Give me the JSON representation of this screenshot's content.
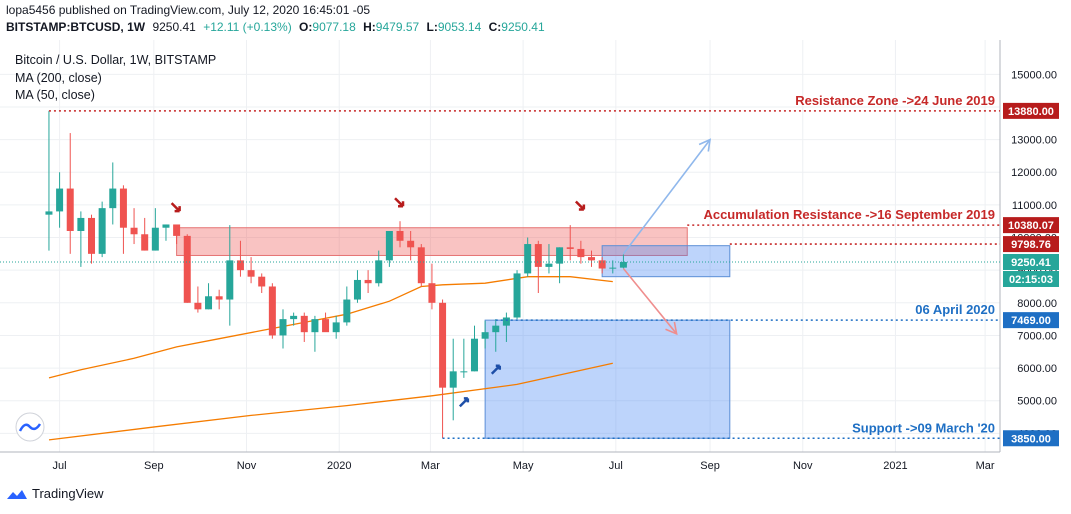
{
  "header": {
    "published": "lopa5456 published on TradingView.com, July 12, 2020 16:45:01 -05",
    "symbol": "BITSTAMP:BTCUSD, 1W",
    "last": "9250.41",
    "change": "+12.11 (+0.13%)",
    "o_label": "O:",
    "o": "9077.18",
    "h_label": "H:",
    "h": "9479.57",
    "l_label": "L:",
    "l": "9053.14",
    "c_label": "C:",
    "c": "9250.41"
  },
  "legend": {
    "title": "Bitcoin / U.S. Dollar, 1W, BITSTAMP",
    "ma200": "MA (200, close)",
    "ma50": "MA (50, close)"
  },
  "footer": {
    "brand": "TradingView"
  },
  "colors": {
    "up": "#26a69a",
    "down": "#ef5350",
    "ma": "#f57c00",
    "resistance": "#c62828",
    "support": "#1e6fc4",
    "zone_red": "rgba(239,83,80,0.35)",
    "zone_blue": "rgba(66,133,244,0.35)"
  },
  "chart_data": {
    "type": "candlestick",
    "ylim": [
      3000,
      15500
    ],
    "y_ticks": [
      4000,
      5000,
      6000,
      7000,
      8000,
      9000,
      10000,
      11000,
      12000,
      13000,
      14000,
      15000
    ],
    "y_tick_labels": [
      "4000.00",
      "5000.00",
      "6000.00",
      "7000.00",
      "8000.00",
      "9000.00",
      "10000.00",
      "11000.00",
      "12000.00",
      "13000.00",
      "14000.00",
      "15000.00"
    ],
    "x_ticks": [
      {
        "label": "Jul",
        "date": "2019-07-01"
      },
      {
        "label": "Sep",
        "date": "2019-09-01"
      },
      {
        "label": "Nov",
        "date": "2019-11-01"
      },
      {
        "label": "2020",
        "date": "2020-01-01"
      },
      {
        "label": "Mar",
        "date": "2020-03-01"
      },
      {
        "label": "May",
        "date": "2020-05-01"
      },
      {
        "label": "Jul",
        "date": "2020-07-01"
      },
      {
        "label": "Sep",
        "date": "2020-09-01"
      },
      {
        "label": "Nov",
        "date": "2020-11-01"
      },
      {
        "label": "2021",
        "date": "2021-01-01"
      },
      {
        "label": "Mar",
        "date": "2021-03-01"
      }
    ],
    "candles": [
      {
        "date": "2019-06-24",
        "o": 10700,
        "h": 13880,
        "l": 9600,
        "c": 10800
      },
      {
        "date": "2019-07-01",
        "o": 10800,
        "h": 12000,
        "l": 10300,
        "c": 11500
      },
      {
        "date": "2019-07-08",
        "o": 11500,
        "h": 13200,
        "l": 9500,
        "c": 10200
      },
      {
        "date": "2019-07-15",
        "o": 10200,
        "h": 10800,
        "l": 9100,
        "c": 10600
      },
      {
        "date": "2019-07-22",
        "o": 10600,
        "h": 10700,
        "l": 9200,
        "c": 9500
      },
      {
        "date": "2019-07-29",
        "o": 9500,
        "h": 11100,
        "l": 9400,
        "c": 10900
      },
      {
        "date": "2019-08-05",
        "o": 10900,
        "h": 12300,
        "l": 10400,
        "c": 11500
      },
      {
        "date": "2019-08-12",
        "o": 11500,
        "h": 11600,
        "l": 9500,
        "c": 10300
      },
      {
        "date": "2019-08-19",
        "o": 10300,
        "h": 10900,
        "l": 9800,
        "c": 10100
      },
      {
        "date": "2019-08-26",
        "o": 10100,
        "h": 10600,
        "l": 9600,
        "c": 9600
      },
      {
        "date": "2019-09-02",
        "o": 9600,
        "h": 10900,
        "l": 9600,
        "c": 10300
      },
      {
        "date": "2019-09-09",
        "o": 10300,
        "h": 10400,
        "l": 9900,
        "c": 10400
      },
      {
        "date": "2019-09-16",
        "o": 10400,
        "h": 10380,
        "l": 9800,
        "c": 10050
      },
      {
        "date": "2019-09-23",
        "o": 10050,
        "h": 10100,
        "l": 8000,
        "c": 8000
      },
      {
        "date": "2019-09-30",
        "o": 8000,
        "h": 8500,
        "l": 7700,
        "c": 7800
      },
      {
        "date": "2019-10-07",
        "o": 7800,
        "h": 8600,
        "l": 7800,
        "c": 8200
      },
      {
        "date": "2019-10-14",
        "o": 8200,
        "h": 8400,
        "l": 7800,
        "c": 8100
      },
      {
        "date": "2019-10-21",
        "o": 8100,
        "h": 10380,
        "l": 7300,
        "c": 9300
      },
      {
        "date": "2019-10-28",
        "o": 9300,
        "h": 9900,
        "l": 8800,
        "c": 9000
      },
      {
        "date": "2019-11-04",
        "o": 9000,
        "h": 9400,
        "l": 8600,
        "c": 8800
      },
      {
        "date": "2019-11-11",
        "o": 8800,
        "h": 8900,
        "l": 8300,
        "c": 8500
      },
      {
        "date": "2019-11-18",
        "o": 8500,
        "h": 8600,
        "l": 6900,
        "c": 7000
      },
      {
        "date": "2019-11-25",
        "o": 7000,
        "h": 7800,
        "l": 6600,
        "c": 7500
      },
      {
        "date": "2019-12-02",
        "o": 7500,
        "h": 7700,
        "l": 7300,
        "c": 7600
      },
      {
        "date": "2019-12-09",
        "o": 7600,
        "h": 7700,
        "l": 6800,
        "c": 7100
      },
      {
        "date": "2019-12-16",
        "o": 7100,
        "h": 7600,
        "l": 6500,
        "c": 7500
      },
      {
        "date": "2019-12-23",
        "o": 7500,
        "h": 7700,
        "l": 7200,
        "c": 7100
      },
      {
        "date": "2019-12-30",
        "o": 7100,
        "h": 7600,
        "l": 6900,
        "c": 7400
      },
      {
        "date": "2020-01-06",
        "o": 7400,
        "h": 8500,
        "l": 7300,
        "c": 8100
      },
      {
        "date": "2020-01-13",
        "o": 8100,
        "h": 9000,
        "l": 8000,
        "c": 8700
      },
      {
        "date": "2020-01-20",
        "o": 8700,
        "h": 9000,
        "l": 8300,
        "c": 8600
      },
      {
        "date": "2020-01-27",
        "o": 8600,
        "h": 9600,
        "l": 8500,
        "c": 9300
      },
      {
        "date": "2020-02-03",
        "o": 9300,
        "h": 10200,
        "l": 9100,
        "c": 10200
      },
      {
        "date": "2020-02-10",
        "o": 10200,
        "h": 10500,
        "l": 9700,
        "c": 9900
      },
      {
        "date": "2020-02-17",
        "o": 9900,
        "h": 10200,
        "l": 9300,
        "c": 9700
      },
      {
        "date": "2020-02-24",
        "o": 9700,
        "h": 9800,
        "l": 8500,
        "c": 8600
      },
      {
        "date": "2020-03-02",
        "o": 8600,
        "h": 9200,
        "l": 7800,
        "c": 8000
      },
      {
        "date": "2020-03-09",
        "o": 8000,
        "h": 8100,
        "l": 3850,
        "c": 5400
      },
      {
        "date": "2020-03-16",
        "o": 5400,
        "h": 6900,
        "l": 4400,
        "c": 5900
      },
      {
        "date": "2020-03-23",
        "o": 5900,
        "h": 6900,
        "l": 5700,
        "c": 5900
      },
      {
        "date": "2020-03-30",
        "o": 5900,
        "h": 7300,
        "l": 5900,
        "c": 6900
      },
      {
        "date": "2020-04-06",
        "o": 6900,
        "h": 7450,
        "l": 6600,
        "c": 7100
      },
      {
        "date": "2020-04-13",
        "o": 7100,
        "h": 7500,
        "l": 6500,
        "c": 7300
      },
      {
        "date": "2020-04-20",
        "o": 7300,
        "h": 7700,
        "l": 6800,
        "c": 7550
      },
      {
        "date": "2020-04-27",
        "o": 7550,
        "h": 9000,
        "l": 7500,
        "c": 8900
      },
      {
        "date": "2020-05-04",
        "o": 8900,
        "h": 10000,
        "l": 8800,
        "c": 9800
      },
      {
        "date": "2020-05-11",
        "o": 9800,
        "h": 9900,
        "l": 8300,
        "c": 9100
      },
      {
        "date": "2020-05-18",
        "o": 9100,
        "h": 9800,
        "l": 8900,
        "c": 9200
      },
      {
        "date": "2020-05-25",
        "o": 9200,
        "h": 9700,
        "l": 8600,
        "c": 9700
      },
      {
        "date": "2020-06-01",
        "o": 9700,
        "h": 10380,
        "l": 9300,
        "c": 9650
      },
      {
        "date": "2020-06-08",
        "o": 9650,
        "h": 9900,
        "l": 9200,
        "c": 9400
      },
      {
        "date": "2020-06-15",
        "o": 9400,
        "h": 9600,
        "l": 9100,
        "c": 9300
      },
      {
        "date": "2020-06-22",
        "o": 9300,
        "h": 9400,
        "l": 8900,
        "c": 9050
      },
      {
        "date": "2020-06-29",
        "o": 9050,
        "h": 9300,
        "l": 8900,
        "c": 9077
      },
      {
        "date": "2020-07-06",
        "o": 9077,
        "h": 9480,
        "l": 9053,
        "c": 9250
      }
    ],
    "ma_lines": [
      {
        "name": "MA (50, close)",
        "points": [
          [
            "2019-06-24",
            5700
          ],
          [
            "2019-07-15",
            5950
          ],
          [
            "2019-08-19",
            6300
          ],
          [
            "2019-09-16",
            6650
          ],
          [
            "2019-10-14",
            6900
          ],
          [
            "2019-11-11",
            7150
          ],
          [
            "2019-12-09",
            7400
          ],
          [
            "2020-01-06",
            7650
          ],
          [
            "2020-02-03",
            8050
          ],
          [
            "2020-02-24",
            8500
          ],
          [
            "2020-03-09",
            8550
          ],
          [
            "2020-04-06",
            8600
          ],
          [
            "2020-05-04",
            8800
          ],
          [
            "2020-06-01",
            8800
          ],
          [
            "2020-06-29",
            8650
          ]
        ]
      },
      {
        "name": "MA (200, close)",
        "points": [
          [
            "2019-06-24",
            3800
          ],
          [
            "2019-09-02",
            4200
          ],
          [
            "2019-11-04",
            4550
          ],
          [
            "2020-01-06",
            4850
          ],
          [
            "2020-03-02",
            5150
          ],
          [
            "2020-04-27",
            5500
          ],
          [
            "2020-06-29",
            6150
          ]
        ]
      }
    ],
    "zones": [
      {
        "kind": "resistance",
        "x0": "2019-09-16",
        "x1": "2020-08-17",
        "y0": 9450,
        "y1": 10300
      },
      {
        "kind": "accumulation",
        "x0": "2020-06-22",
        "x1": "2020-09-14",
        "y0": 8800,
        "y1": 9750
      },
      {
        "kind": "support",
        "x0": "2020-04-06",
        "x1": "2020-09-14",
        "y0": 3850,
        "y1": 7469
      }
    ],
    "levels": [
      {
        "price": 13880,
        "label": "13880.00",
        "kind": "resistance",
        "note": "Resistance Zone ->24 June 2019",
        "x0": "2019-06-24"
      },
      {
        "price": 10380.07,
        "label": "10380.07",
        "kind": "resistance",
        "note": "Accumulation Resistance ->16 September 2019",
        "x0": "2020-08-17"
      },
      {
        "price": 9798.76,
        "label": "9798.76",
        "kind": "resistance",
        "note": "",
        "x0": "2020-09-14"
      },
      {
        "price": 7469,
        "label": "7469.00",
        "kind": "support",
        "note": "06 April 2020",
        "x0": "2020-04-13"
      },
      {
        "price": 3850,
        "label": "3850.00",
        "kind": "support",
        "note": "Support ->09 March '20",
        "x0": "2020-03-09"
      }
    ],
    "last_price": {
      "price": 9250.41,
      "label": "9250.41",
      "countdown": "02:15:03"
    },
    "projections": [
      {
        "kind": "up",
        "from": [
          "2020-07-06",
          9500
        ],
        "to": [
          "2020-09-01",
          13000
        ]
      },
      {
        "kind": "down",
        "from": [
          "2020-07-06",
          9050
        ],
        "to": [
          "2020-08-10",
          7050
        ]
      }
    ],
    "markers": [
      {
        "kind": "sell",
        "date": "2019-09-16",
        "price": 10900
      },
      {
        "kind": "sell",
        "date": "2020-02-10",
        "price": 11050
      },
      {
        "kind": "sell",
        "date": "2020-06-08",
        "price": 10950
      },
      {
        "kind": "buy",
        "date": "2020-03-23",
        "price": 4950
      },
      {
        "kind": "buy",
        "date": "2020-04-13",
        "price": 5950
      }
    ]
  }
}
